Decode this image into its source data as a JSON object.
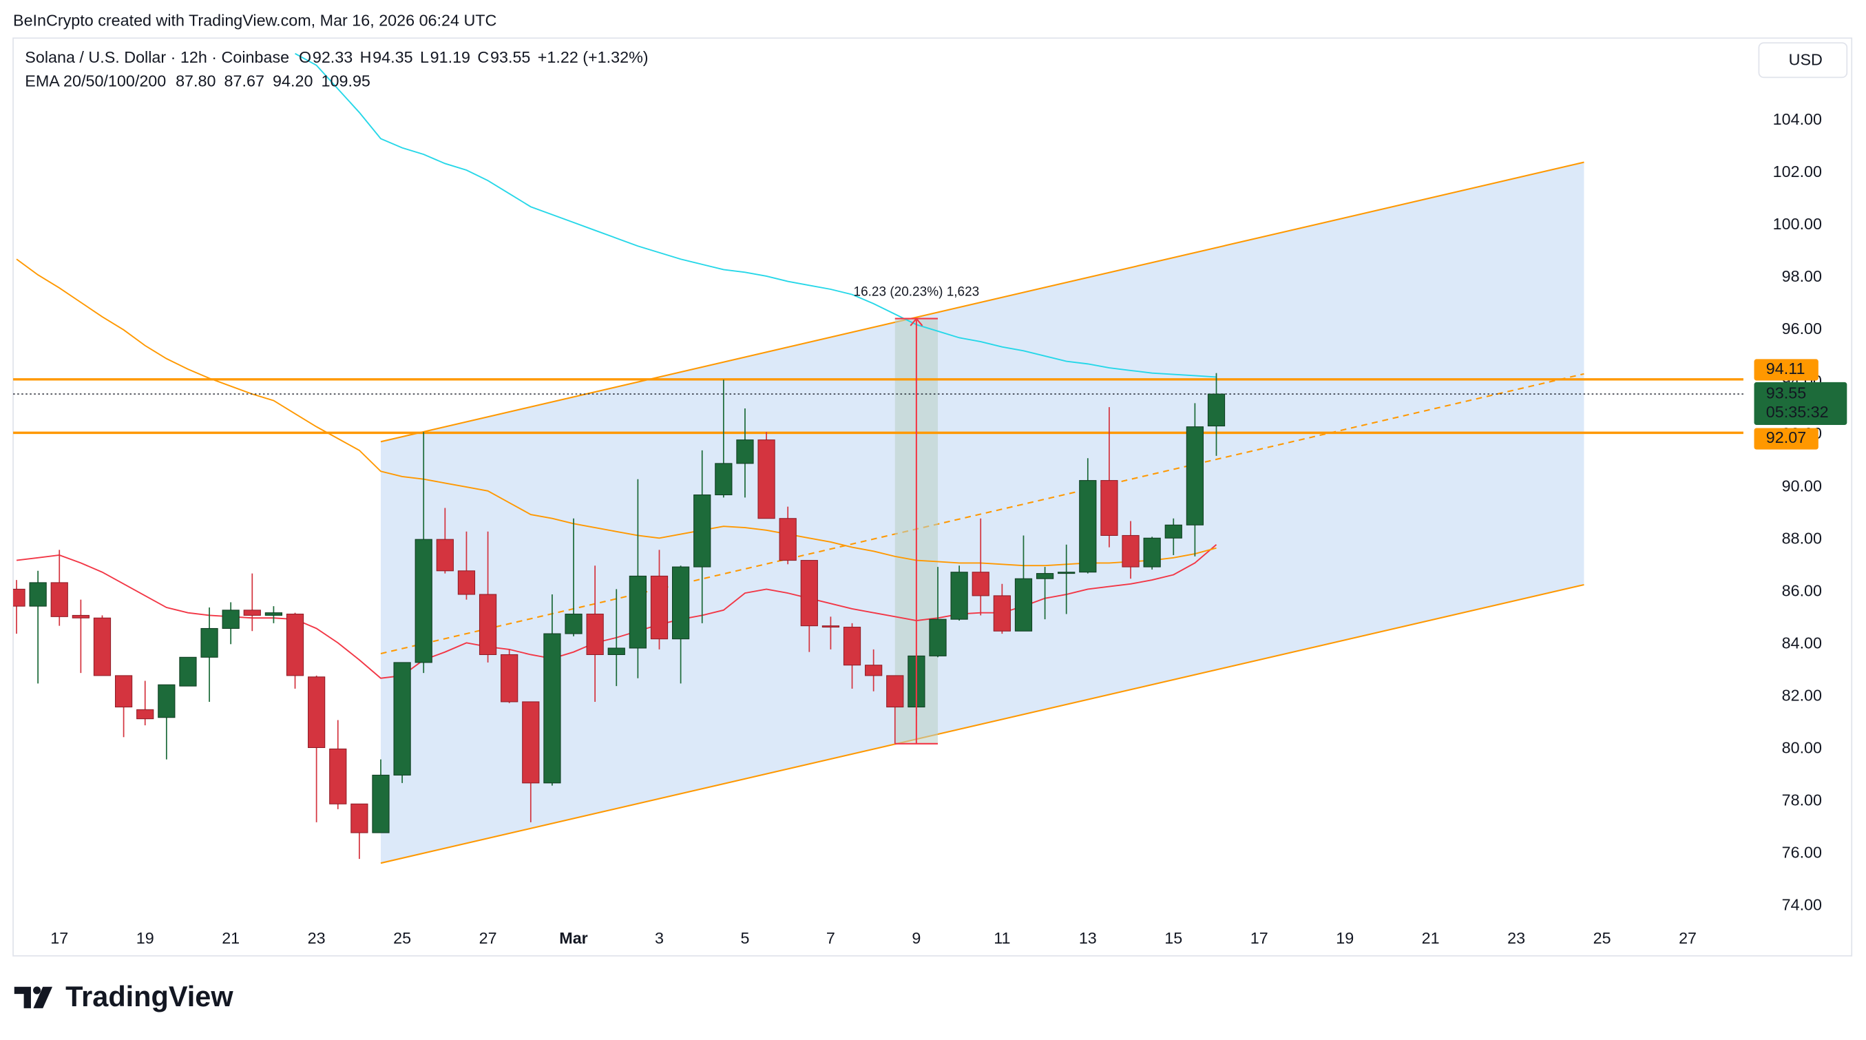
{
  "header": {
    "attribution": "BeInCrypto created with TradingView.com, Mar 16, 2026 06:24 UTC"
  },
  "chart_data": {
    "type": "candlestick",
    "legend": {
      "symbol": "Solana / U.S. Dollar · 12h · Coinbase",
      "value_color": "#089981",
      "ohlc": [
        {
          "label": "O",
          "value": 92.33
        },
        {
          "label": "H",
          "value": 94.35
        },
        {
          "label": "L",
          "value": 91.19
        },
        {
          "label": "C",
          "value": 93.55
        }
      ],
      "change": "+1.22 (+1.32%)",
      "indicator": "EMA 20/50/100/200",
      "indicator_values": [
        {
          "label": "87.80",
          "color": "#f23645"
        },
        {
          "label": "87.67",
          "color": "#ff9800"
        },
        {
          "label": "94.20",
          "color": "#26d7e8"
        },
        {
          "label": "109.95",
          "color": "#1f1fc8"
        }
      ]
    },
    "currency": "USD",
    "up_color": "#1d6b3a",
    "down_color": "#d4343f",
    "x": [
      16,
      16.5,
      17,
      17.5,
      18,
      18.5,
      19,
      19.5,
      20,
      20.5,
      21,
      21.5,
      22,
      22.5,
      23,
      23.5,
      24,
      24.5,
      25,
      25.5,
      26,
      26.5,
      27,
      27.5,
      28,
      28.5,
      29,
      29.5,
      30,
      30.5,
      31,
      31.5,
      32,
      32.5,
      33,
      33.5,
      34,
      34.5,
      35,
      35.5,
      36,
      36.5,
      37,
      37.5,
      38,
      38.5,
      39,
      39.5,
      40,
      40.5,
      41,
      41.5,
      42,
      42.5,
      43,
      43.5,
      44
    ],
    "open": [
      86.1,
      85.45,
      86.35,
      85.1,
      85.0,
      82.8,
      81.5,
      81.2,
      82.4,
      83.5,
      84.6,
      85.3,
      85.1,
      85.15,
      82.75,
      80.0,
      77.9,
      76.8,
      79.0,
      83.3,
      88.0,
      86.8,
      85.9,
      83.6,
      81.8,
      78.7,
      84.4,
      85.15,
      83.6,
      83.85,
      86.6,
      84.2,
      86.95,
      89.7,
      90.9,
      91.8,
      88.8,
      87.2,
      84.7,
      84.65,
      83.2,
      82.8,
      81.6,
      83.55,
      84.95,
      86.75,
      85.85,
      84.5,
      86.5,
      86.7,
      86.75,
      90.25,
      88.15,
      86.95,
      88.05,
      88.55,
      92.33
    ],
    "high": [
      86.45,
      86.8,
      87.6,
      85.7,
      85.1,
      82.8,
      82.6,
      82.45,
      83.5,
      85.4,
      85.6,
      86.7,
      85.45,
      85.2,
      82.8,
      81.1,
      77.9,
      79.6,
      83.3,
      92.1,
      89.2,
      88.3,
      88.3,
      83.8,
      81.8,
      85.9,
      88.8,
      87.0,
      86.1,
      90.3,
      87.6,
      87.0,
      91.4,
      94.1,
      93.0,
      92.1,
      89.25,
      87.2,
      85.05,
      84.8,
      83.8,
      82.8,
      83.65,
      86.95,
      87.0,
      88.8,
      86.3,
      88.15,
      86.95,
      87.8,
      91.1,
      93.05,
      88.7,
      88.1,
      88.8,
      93.2,
      94.35
    ],
    "low": [
      84.4,
      82.5,
      84.7,
      82.9,
      82.8,
      80.45,
      80.9,
      79.6,
      82.4,
      81.8,
      84.0,
      84.5,
      84.8,
      82.3,
      77.2,
      77.7,
      75.8,
      76.8,
      78.7,
      82.9,
      86.7,
      85.7,
      83.3,
      81.75,
      77.2,
      78.6,
      84.3,
      81.8,
      82.4,
      82.7,
      83.8,
      82.5,
      84.8,
      89.6,
      89.6,
      88.8,
      87.05,
      83.7,
      83.8,
      82.3,
      82.2,
      80.2,
      81.25,
      83.5,
      84.9,
      85.1,
      84.4,
      84.5,
      84.95,
      85.15,
      86.7,
      87.7,
      86.5,
      86.85,
      87.4,
      87.35,
      91.19
    ],
    "close": [
      85.45,
      86.35,
      85.05,
      85.0,
      82.8,
      81.6,
      81.15,
      82.45,
      83.5,
      84.6,
      85.3,
      85.1,
      85.2,
      82.8,
      80.05,
      77.9,
      76.8,
      79.0,
      83.3,
      88.0,
      86.8,
      85.9,
      83.6,
      81.8,
      78.7,
      84.4,
      85.15,
      83.6,
      83.85,
      86.6,
      84.2,
      86.95,
      89.7,
      90.9,
      91.8,
      88.8,
      87.2,
      84.7,
      84.65,
      83.2,
      82.8,
      81.6,
      83.55,
      84.95,
      86.75,
      85.85,
      84.5,
      86.5,
      86.7,
      86.75,
      90.25,
      88.15,
      86.95,
      88.05,
      88.55,
      92.3,
      93.55
    ],
    "series": [
      {
        "color": "#f23645",
        "values": [
          87.2,
          87.3,
          87.4,
          87.1,
          86.75,
          86.3,
          85.85,
          85.4,
          85.2,
          85.1,
          85.05,
          85.0,
          85.0,
          84.95,
          84.6,
          84.05,
          83.4,
          82.7,
          82.8,
          83.4,
          83.7,
          84.05,
          83.9,
          83.8,
          83.6,
          83.45,
          83.7,
          84.05,
          84.25,
          84.5,
          84.75,
          84.95,
          85.1,
          85.3,
          85.95,
          86.1,
          85.95,
          85.75,
          85.55,
          85.35,
          85.2,
          85.05,
          84.9,
          85.0,
          85.15,
          85.2,
          85.2,
          85.45,
          85.75,
          85.9,
          86.1,
          86.2,
          86.3,
          86.45,
          86.65,
          87.1,
          87.8
        ]
      },
      {
        "color": "#ff9800",
        "values": [
          98.7,
          98.1,
          97.6,
          97.05,
          96.5,
          96.0,
          95.4,
          94.9,
          94.5,
          94.15,
          93.85,
          93.55,
          93.3,
          92.8,
          92.3,
          91.85,
          91.4,
          90.6,
          90.4,
          90.3,
          90.15,
          90.0,
          89.85,
          89.4,
          88.95,
          88.8,
          88.6,
          88.45,
          88.3,
          88.15,
          88.05,
          88.2,
          88.35,
          88.5,
          88.45,
          88.35,
          88.2,
          88.05,
          87.9,
          87.7,
          87.55,
          87.35,
          87.2,
          87.15,
          87.1,
          87.1,
          87.05,
          87.0,
          87.0,
          87.05,
          87.1,
          87.1,
          87.15,
          87.2,
          87.3,
          87.45,
          87.67
        ]
      },
      {
        "color": "#26d7e8",
        "values": [
          null,
          null,
          null,
          null,
          null,
          null,
          null,
          null,
          null,
          null,
          null,
          null,
          null,
          106.55,
          106.1,
          105.2,
          104.3,
          103.3,
          102.95,
          102.7,
          102.35,
          102.1,
          101.7,
          101.2,
          100.7,
          100.4,
          100.1,
          99.8,
          99.5,
          99.2,
          98.95,
          98.7,
          98.5,
          98.3,
          98.2,
          98.05,
          97.85,
          97.7,
          97.55,
          97.35,
          97.0,
          96.6,
          96.2,
          95.95,
          95.7,
          95.55,
          95.35,
          95.2,
          95.0,
          94.8,
          94.7,
          94.55,
          94.45,
          94.35,
          94.3,
          94.25,
          94.2
        ]
      }
    ],
    "xlim": [
      15.92,
      56.3
    ],
    "xticks": [
      17,
      19,
      21,
      23,
      25,
      27,
      {
        "value": 29,
        "label": "Mar"
      },
      {
        "value": 31,
        "label": "3"
      },
      {
        "value": 33,
        "label": "5"
      },
      {
        "value": 35,
        "label": "7"
      },
      {
        "value": 37,
        "label": "9"
      },
      {
        "value": 39,
        "label": "11"
      },
      {
        "value": 41,
        "label": "13"
      },
      {
        "value": 43,
        "label": "15"
      },
      {
        "value": 45,
        "label": "17"
      },
      {
        "value": 47,
        "label": "19"
      },
      {
        "value": 49,
        "label": "21"
      },
      {
        "value": 51,
        "label": "23"
      },
      {
        "value": 53,
        "label": "25"
      },
      {
        "value": 55,
        "label": "27"
      }
    ],
    "ylim": [
      72.1,
      107.14
    ],
    "yticks": [
      {
        "value": 74,
        "label": "74.00"
      },
      {
        "value": 76,
        "label": "76.00"
      },
      {
        "value": 78,
        "label": "78.00"
      },
      {
        "value": 80,
        "label": "80.00"
      },
      {
        "value": 82,
        "label": "82.00"
      },
      {
        "value": 84,
        "label": "84.00"
      },
      {
        "value": 86,
        "label": "86.00"
      },
      {
        "value": 88,
        "label": "88.00"
      },
      {
        "value": 90,
        "label": "90.00"
      },
      {
        "value": 92,
        "label": "92.00"
      },
      {
        "value": 94,
        "label": "94.00"
      },
      {
        "value": 96,
        "label": "96.00"
      },
      {
        "value": 98,
        "label": "98.00"
      },
      {
        "value": 100,
        "label": "100.00"
      },
      {
        "value": 102,
        "label": "102.00"
      },
      {
        "value": 104,
        "label": "104.00"
      }
    ],
    "grid": false,
    "channel": {
      "color": "#ff9800",
      "fill": "#d6e5f8",
      "upper": {
        "x": [
          24.5,
          52.58
        ],
        "y": [
          91.73,
          102.4
        ]
      },
      "lower": {
        "x": [
          24.5,
          52.58
        ],
        "y": [
          75.64,
          86.27
        ]
      },
      "midline": {
        "x": [
          24.5,
          52.58
        ],
        "y": [
          83.64,
          94.32
        ]
      }
    },
    "levels": {
      "color": "#ff9800",
      "values": [
        94.11,
        92.07
      ]
    },
    "last_price": {
      "value": 93.55,
      "countdown": "05:35:32"
    },
    "measure": {
      "x": 37,
      "x_range": [
        36.5,
        37.5
      ],
      "from": 80.2,
      "to": 96.43,
      "label": "16.23 (20.23%) 1,623",
      "color": "#f23645"
    }
  },
  "footer": {
    "logo": "TradingView"
  }
}
